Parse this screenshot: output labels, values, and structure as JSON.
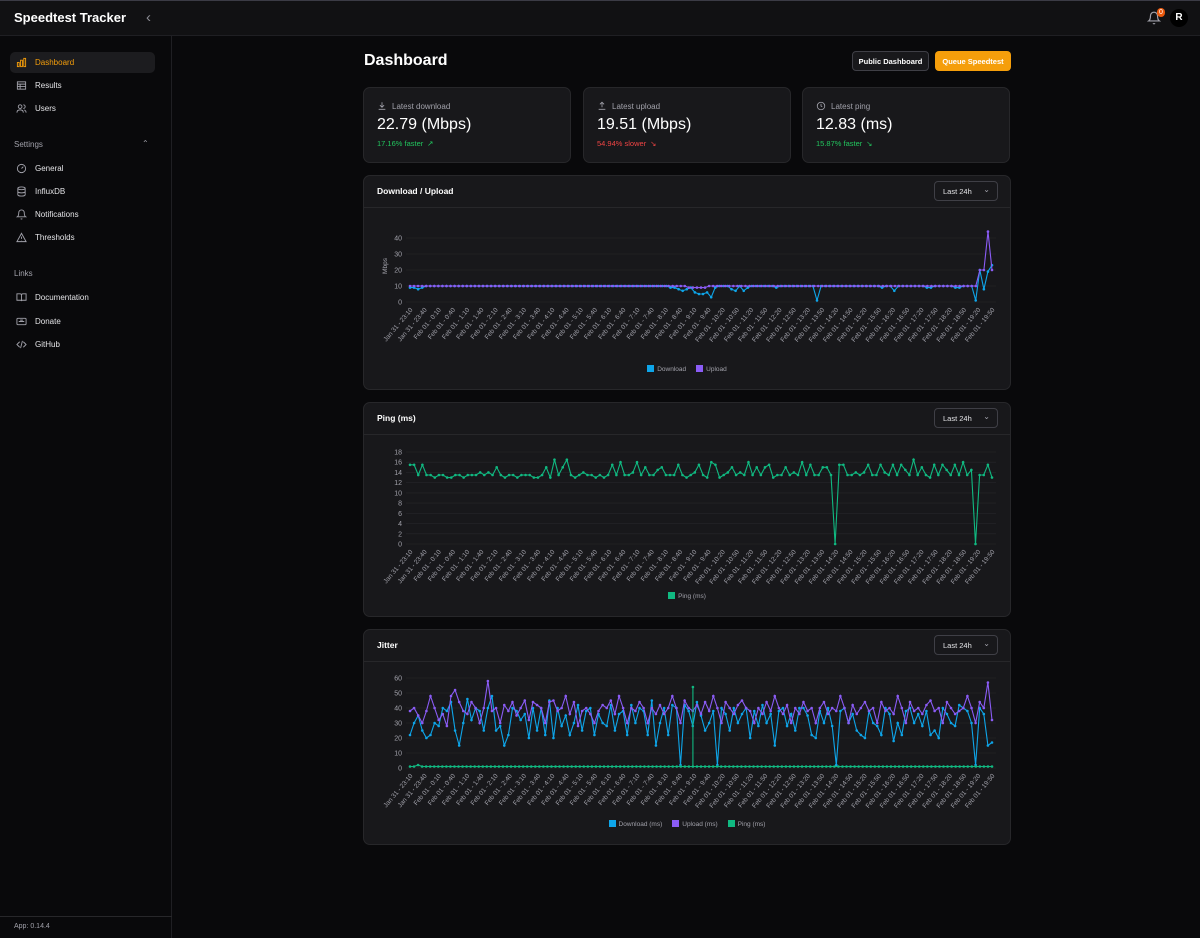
{
  "app": {
    "title": "Speedtest Tracker",
    "version": "App: 0.14.4",
    "notification_count": "0",
    "user_initial": "R"
  },
  "sidebar": {
    "main": [
      {
        "label": "Dashboard",
        "active": true,
        "icon": "bar-chart-icon"
      },
      {
        "label": "Results",
        "icon": "table-icon"
      },
      {
        "label": "Users",
        "icon": "users-icon"
      }
    ],
    "settings_label": "Settings",
    "settings": [
      {
        "label": "General",
        "icon": "gauge-icon"
      },
      {
        "label": "InfluxDB",
        "icon": "database-icon"
      },
      {
        "label": "Notifications",
        "icon": "bell-icon"
      },
      {
        "label": "Thresholds",
        "icon": "warning-icon"
      }
    ],
    "links_label": "Links",
    "links": [
      {
        "label": "Documentation",
        "icon": "book-icon"
      },
      {
        "label": "Donate",
        "icon": "donate-icon"
      },
      {
        "label": "GitHub",
        "icon": "code-icon"
      }
    ]
  },
  "page": {
    "title": "Dashboard",
    "public_dashboard": "Public Dashboard",
    "queue_speedtest": "Queue Speedtest"
  },
  "stats": [
    {
      "label": "Latest download",
      "value": "22.79 (Mbps)",
      "change": "17.16% faster",
      "trend": "up",
      "icon": "download-icon"
    },
    {
      "label": "Latest upload",
      "value": "19.51 (Mbps)",
      "change": "54.94% slower",
      "trend": "down",
      "icon": "upload-icon"
    },
    {
      "label": "Latest ping",
      "value": "12.83 (ms)",
      "change": "15.87% faster",
      "trend": "down-good",
      "icon": "clock-icon"
    }
  ],
  "colors": {
    "download": "#0ea5e9",
    "upload": "#8b5cf6",
    "ping": "#10b981",
    "accent": "#f59e0b"
  },
  "chart_data": [
    {
      "type": "line",
      "title": "Download / Upload",
      "range": "Last 24h",
      "ylabel": "Mbps",
      "ylim": [
        0,
        45
      ],
      "yticks": [
        0,
        10,
        20,
        30,
        40
      ],
      "xticks": [
        "Jan 31 - 23:10",
        "Jan 31 - 23:40",
        "Feb 01 - 0:10",
        "Feb 01 - 0:40",
        "Feb 01 - 1:10",
        "Feb 01 - 1:40",
        "Feb 01 - 2:10",
        "Feb 01 - 2:40",
        "Feb 01 - 3:10",
        "Feb 01 - 3:40",
        "Feb 01 - 4:10",
        "Feb 01 - 4:40",
        "Feb 01 - 5:10",
        "Feb 01 - 5:40",
        "Feb 01 - 6:10",
        "Feb 01 - 6:40",
        "Feb 01 - 7:10",
        "Feb 01 - 7:40",
        "Feb 01 - 8:10",
        "Feb 01 - 8:40",
        "Feb 01 - 9:10",
        "Feb 01 - 9:40",
        "Feb 01 - 10:20",
        "Feb 01 - 10:50",
        "Feb 01 - 11:20",
        "Feb 01 - 11:50",
        "Feb 01 - 12:20",
        "Feb 01 - 12:50",
        "Feb 01 - 13:20",
        "Feb 01 - 13:50",
        "Feb 01 - 14:20",
        "Feb 01 - 14:50",
        "Feb 01 - 15:20",
        "Feb 01 - 15:50",
        "Feb 01 - 16:20",
        "Feb 01 - 16:50",
        "Feb 01 - 17:20",
        "Feb 01 - 17:50",
        "Feb 01 - 18:20",
        "Feb 01 - 18:50",
        "Feb 01 - 19:20",
        "Feb 01 - 19:50"
      ],
      "series": [
        {
          "name": "Download",
          "color": "#0ea5e9",
          "values": [
            9,
            9,
            8,
            9,
            10,
            10,
            10,
            10,
            10,
            10,
            10,
            10,
            10,
            10,
            10,
            10,
            10,
            10,
            10,
            10,
            10,
            10,
            10,
            10,
            10,
            10,
            10,
            10,
            10,
            10,
            10,
            10,
            10,
            10,
            10,
            10,
            10,
            10,
            10,
            10,
            10,
            10,
            10,
            10,
            10,
            10,
            10,
            10,
            10,
            10,
            10,
            10,
            10,
            10,
            10,
            10,
            10,
            10,
            10,
            10,
            10,
            10,
            10,
            10,
            9,
            9,
            8,
            7,
            8,
            9,
            6,
            5,
            5,
            6,
            3,
            9,
            10,
            10,
            10,
            8,
            7,
            10,
            7,
            9,
            10,
            10,
            10,
            10,
            10,
            10,
            9,
            10,
            10,
            10,
            10,
            10,
            10,
            10,
            10,
            10,
            1,
            10,
            10,
            10,
            10,
            10,
            10,
            10,
            10,
            10,
            10,
            10,
            10,
            10,
            10,
            10,
            9,
            10,
            10,
            7,
            10,
            10,
            10,
            10,
            10,
            10,
            10,
            9,
            9,
            10,
            10,
            10,
            10,
            10,
            9,
            9,
            10,
            10,
            10,
            1,
            20,
            8,
            19,
            23
          ]
        },
        {
          "name": "Upload",
          "color": "#8b5cf6",
          "values": [
            10,
            10,
            10,
            10,
            10,
            10,
            10,
            10,
            10,
            10,
            10,
            10,
            10,
            10,
            10,
            10,
            10,
            10,
            10,
            10,
            10,
            10,
            10,
            10,
            10,
            10,
            10,
            10,
            10,
            10,
            10,
            10,
            10,
            10,
            10,
            10,
            10,
            10,
            10,
            10,
            10,
            10,
            10,
            10,
            10,
            10,
            10,
            10,
            10,
            10,
            10,
            10,
            10,
            10,
            10,
            10,
            10,
            10,
            10,
            10,
            10,
            10,
            10,
            10,
            10,
            10,
            10,
            10,
            10,
            9,
            9,
            9,
            9,
            9,
            10,
            10,
            10,
            10,
            10,
            10,
            10,
            10,
            10,
            10,
            10,
            10,
            10,
            10,
            10,
            10,
            10,
            10,
            10,
            10,
            10,
            10,
            10,
            10,
            10,
            10,
            10,
            10,
            10,
            10,
            10,
            10,
            10,
            10,
            10,
            10,
            10,
            10,
            10,
            10,
            10,
            10,
            10,
            10,
            10,
            10,
            10,
            10,
            10,
            10,
            10,
            10,
            10,
            10,
            10,
            10,
            10,
            10,
            10,
            10,
            10,
            10,
            10,
            10,
            10,
            10,
            10,
            20,
            20,
            44,
            20
          ]
        }
      ]
    },
    {
      "type": "line",
      "title": "Ping (ms)",
      "range": "Last 24h",
      "ylim": [
        0,
        18
      ],
      "yticks": [
        0,
        2,
        4,
        6,
        8,
        10,
        12,
        14,
        16,
        18
      ],
      "series": [
        {
          "name": "Ping (ms)",
          "color": "#10b981",
          "values": [
            15.5,
            15.5,
            13.5,
            15.5,
            13.5,
            13.5,
            13,
            13.5,
            13.5,
            13,
            13,
            13.5,
            13.5,
            13,
            13.5,
            13.5,
            13.5,
            14,
            13.5,
            14,
            13.5,
            15,
            13.5,
            13,
            13.5,
            13.5,
            13,
            13.5,
            13.5,
            13.5,
            13,
            13,
            13.5,
            15,
            13,
            16.5,
            13.5,
            15,
            16.5,
            13.5,
            13,
            13.5,
            14,
            13.5,
            13.5,
            13,
            13.5,
            13,
            13.5,
            15.5,
            13.5,
            16,
            13.5,
            13.5,
            14,
            16,
            13.5,
            15,
            13.5,
            13.5,
            14.5,
            15,
            13.5,
            13.5,
            13.5,
            15.5,
            13.5,
            13,
            13.5,
            14,
            15.5,
            13.5,
            13,
            16,
            15.5,
            13,
            13.5,
            14,
            15,
            13.5,
            14,
            13.5,
            16,
            13.5,
            15,
            13.5,
            15,
            15.5,
            13,
            13.5,
            13.5,
            15,
            13.5,
            14,
            13.5,
            16,
            13.5,
            15.5,
            13.5,
            13.5,
            15,
            15,
            13.5,
            0,
            15.5,
            15.5,
            13.5,
            13.5,
            14,
            13.5,
            14,
            15.5,
            13.5,
            13.5,
            15.5,
            14,
            13.5,
            15.5,
            13.5,
            15.5,
            14.5,
            13.5,
            16.5,
            13.5,
            15,
            13.5,
            13,
            15.5,
            13.5,
            15.5,
            14.5,
            13.5,
            15.5,
            13.5,
            16,
            13.5,
            14.5,
            0,
            13.5,
            13.5,
            15.5,
            13
          ]
        }
      ]
    },
    {
      "type": "line",
      "title": "Jitter",
      "range": "Last 24h",
      "ylim": [
        0,
        60
      ],
      "yticks": [
        0,
        10,
        20,
        30,
        40,
        50,
        60
      ],
      "series": [
        {
          "name": "Download (ms)",
          "color": "#0ea5e9",
          "values": [
            22,
            30,
            35,
            25,
            20,
            22,
            30,
            28,
            40,
            38,
            44,
            25,
            15,
            30,
            46,
            32,
            40,
            38,
            25,
            40,
            48,
            25,
            28,
            15,
            22,
            40,
            38,
            32,
            36,
            20,
            40,
            25,
            40,
            22,
            45,
            20,
            40,
            28,
            35,
            22,
            30,
            42,
            25,
            38,
            40,
            22,
            36,
            30,
            28,
            42,
            25,
            36,
            38,
            22,
            42,
            30,
            40,
            38,
            22,
            45,
            15,
            30,
            40,
            22,
            42,
            40,
            2,
            42,
            38,
            28,
            44,
            35,
            25,
            30,
            38,
            2,
            40,
            36,
            25,
            40,
            30,
            36,
            40,
            20,
            38,
            28,
            42,
            30,
            36,
            15,
            38,
            40,
            28,
            36,
            25,
            40,
            40,
            35,
            22,
            20,
            38,
            30,
            40,
            28,
            2,
            38,
            40,
            30,
            36,
            25,
            22,
            20,
            38,
            30,
            28,
            22,
            40,
            36,
            18,
            30,
            22,
            38,
            40,
            30,
            36,
            28,
            38,
            22,
            25,
            20,
            40,
            36,
            30,
            28,
            42,
            40,
            38,
            30,
            2,
            40,
            36,
            15,
            17
          ]
        },
        {
          "name": "Upload (ms)",
          "color": "#8b5cf6",
          "values": [
            38,
            40,
            35,
            30,
            38,
            48,
            40,
            32,
            36,
            28,
            48,
            52,
            44,
            38,
            36,
            44,
            40,
            30,
            40,
            58,
            38,
            40,
            30,
            42,
            38,
            44,
            35,
            40,
            45,
            32,
            44,
            42,
            40,
            30,
            44,
            45,
            38,
            40,
            48,
            36,
            44,
            28,
            38,
            40,
            36,
            30,
            38,
            42,
            40,
            45,
            36,
            48,
            40,
            30,
            40,
            38,
            44,
            40,
            30,
            40,
            36,
            42,
            36,
            40,
            48,
            40,
            30,
            45,
            40,
            38,
            42,
            36,
            44,
            38,
            48,
            40,
            30,
            44,
            40,
            36,
            42,
            45,
            40,
            38,
            30,
            40,
            36,
            44,
            38,
            48,
            40,
            36,
            42,
            30,
            40,
            36,
            44,
            38,
            40,
            30,
            40,
            44,
            36,
            40,
            38,
            48,
            40,
            30,
            42,
            36,
            40,
            44,
            38,
            40,
            30,
            44,
            38,
            40,
            36,
            48,
            40,
            30,
            44,
            38,
            40,
            36,
            42,
            45,
            38,
            40,
            30,
            44,
            40,
            36,
            38,
            40,
            48,
            40,
            30,
            44,
            40,
            57,
            32
          ]
        },
        {
          "name": "Ping (ms)",
          "color": "#10b981",
          "values": [
            1,
            1,
            2,
            1,
            1,
            1,
            1,
            1,
            1,
            1,
            1,
            1,
            1,
            1,
            1,
            1,
            1,
            1,
            1,
            1,
            1,
            1,
            1,
            1,
            1,
            1,
            1,
            1,
            1,
            1,
            1,
            1,
            1,
            1,
            1,
            1,
            1,
            1,
            1,
            1,
            1,
            1,
            1,
            1,
            1,
            1,
            1,
            1,
            1,
            1,
            1,
            1,
            1,
            1,
            1,
            1,
            1,
            1,
            1,
            1,
            1,
            1,
            1,
            1,
            1,
            1,
            1,
            1,
            1,
            1,
            1,
            1,
            1,
            1,
            1,
            1,
            1,
            1,
            1,
            1,
            1,
            1,
            1,
            1,
            1,
            1,
            1,
            1,
            1,
            1,
            1,
            1,
            1,
            1,
            1,
            1,
            1,
            1,
            1,
            1,
            1,
            1,
            1,
            1,
            1,
            1,
            1,
            1,
            1,
            1,
            1,
            1,
            1,
            1,
            1,
            1,
            1,
            1,
            1,
            1,
            1,
            1,
            1,
            1,
            1,
            1,
            1,
            1,
            1,
            1,
            1,
            1,
            1,
            1,
            1,
            1,
            1,
            1,
            1,
            1,
            1,
            1,
            1,
            1,
            1
          ]
        }
      ]
    }
  ],
  "jitter_spike": {
    "index": 70,
    "value": 54
  }
}
